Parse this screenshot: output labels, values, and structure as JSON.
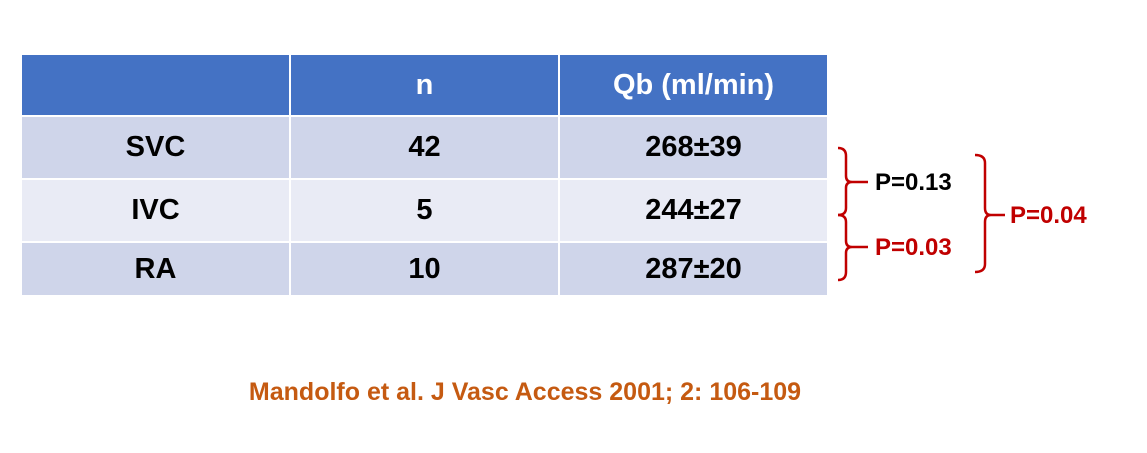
{
  "table": {
    "columns": [
      "n",
      "Qb (ml/min)"
    ],
    "rows": [
      [
        "SVC",
        "42",
        "268±39"
      ],
      [
        "IVC",
        "5",
        "244±27"
      ],
      [
        "RA",
        "10",
        "287±20"
      ]
    ]
  },
  "annotations": [
    "P=0.13",
    "P=0.03",
    "P=0.04"
  ],
  "citation": "Mandolfo et al. J Vasc Access 2001; 2: 106-109"
}
